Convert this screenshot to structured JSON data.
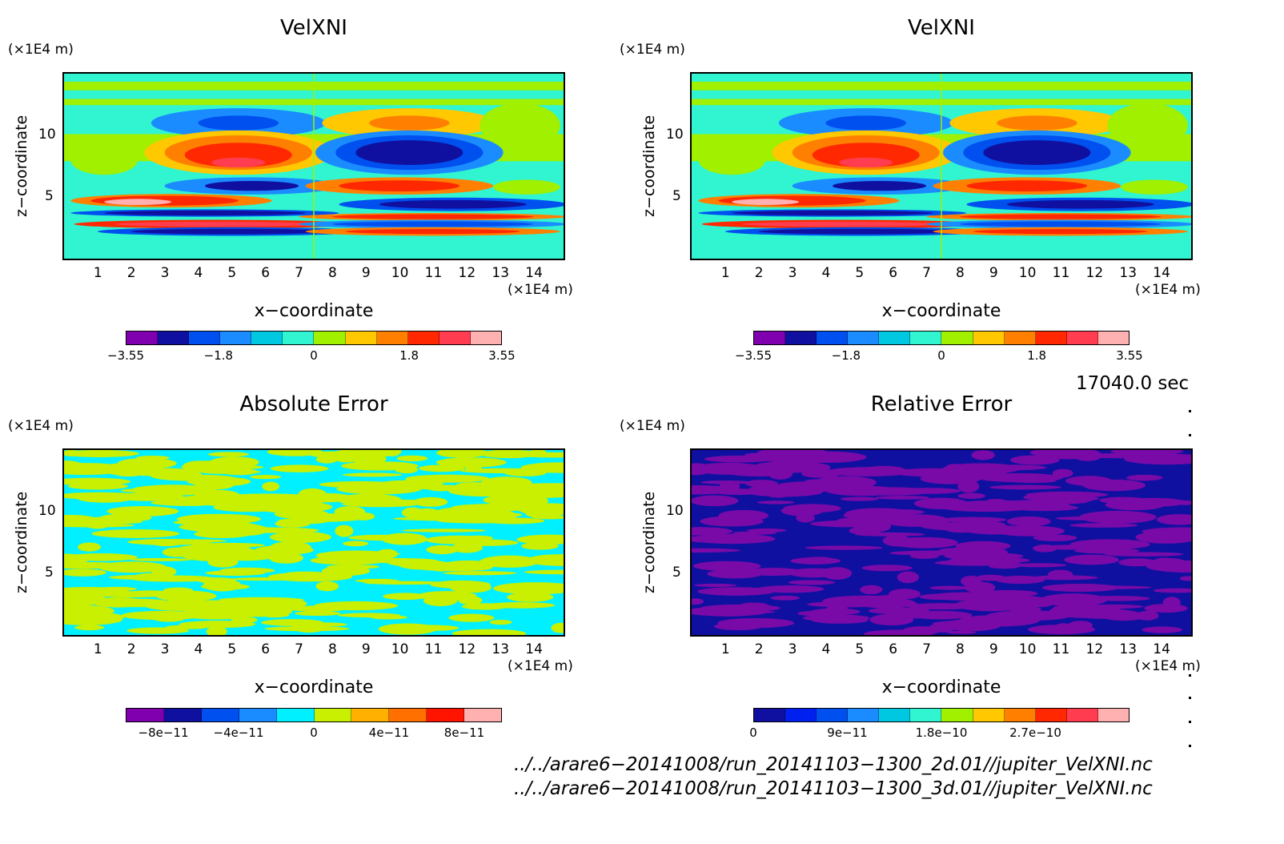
{
  "panels": [
    {
      "title": "VelXNI",
      "ylabel": "z−coordinate",
      "xlabel": "x−coordinate",
      "yunit": "(×1E4 m)",
      "xunit": "(×1E4 m)",
      "cbar_labels": [
        "−3.55",
        "−1.8",
        "0",
        "1.8",
        "3.55"
      ]
    },
    {
      "title": "VelXNI",
      "ylabel": "z−coordinate",
      "xlabel": "x−coordinate",
      "yunit": "(×1E4 m)",
      "xunit": "(×1E4 m)",
      "cbar_labels": [
        "−3.55",
        "−1.8",
        "0",
        "1.8",
        "3.55"
      ]
    },
    {
      "title": "Absolute Error",
      "ylabel": "z−coordinate",
      "xlabel": "x−coordinate",
      "yunit": "(×1E4 m)",
      "xunit": "(×1E4 m)",
      "cbar_labels": [
        "−8e−11",
        "−4e−11",
        "0",
        "4e−11",
        "8e−11"
      ]
    },
    {
      "title": "Relative Error",
      "ylabel": "z−coordinate",
      "xlabel": "x−coordinate",
      "yunit": "(×1E4 m)",
      "xunit": "(×1E4 m)",
      "cbar_labels": [
        "0",
        "9e−11",
        "1.8e−10",
        "2.7e−10"
      ]
    }
  ],
  "timestamp": "17040.0 sec",
  "files": [
    "../../arare6−20141008/run_20141103−1300_2d.01//jupiter_VelXNI.nc",
    "../../arare6−20141008/run_20141103−1300_3d.01//jupiter_VelXNI.nc"
  ],
  "chart_data": [
    {
      "type": "heatmap",
      "title": "VelXNI",
      "xlabel": "x−coordinate",
      "ylabel": "z−coordinate",
      "xticks": [
        1,
        2,
        3,
        4,
        5,
        6,
        7,
        8,
        9,
        10,
        11,
        12,
        13,
        14
      ],
      "yticks": [
        5,
        10
      ],
      "xlim": [
        0,
        14.9
      ],
      "ylim": [
        0,
        15
      ],
      "colorbar": {
        "min": -3.55,
        "max": 3.55,
        "ticks": [
          -3.55,
          -1.8,
          0,
          1.8,
          3.55
        ],
        "colors": [
          "#8000b0",
          "#1010a0",
          "#0050f0",
          "#1a8cff",
          "#00c8e0",
          "#30f5d0",
          "#a0f000",
          "#ffc800",
          "#ff8000",
          "#ff2800",
          "#ff3c50",
          "#ffb0b0"
        ]
      }
    },
    {
      "type": "heatmap",
      "title": "VelXNI",
      "xlabel": "x−coordinate",
      "ylabel": "z−coordinate",
      "xticks": [
        1,
        2,
        3,
        4,
        5,
        6,
        7,
        8,
        9,
        10,
        11,
        12,
        13,
        14
      ],
      "yticks": [
        5,
        10
      ],
      "xlim": [
        0,
        14.9
      ],
      "ylim": [
        0,
        15
      ],
      "colorbar": {
        "min": -3.55,
        "max": 3.55,
        "ticks": [
          -3.55,
          -1.8,
          0,
          1.8,
          3.55
        ],
        "colors": [
          "#8000b0",
          "#1010a0",
          "#0050f0",
          "#1a8cff",
          "#00c8e0",
          "#30f5d0",
          "#a0f000",
          "#ffc800",
          "#ff8000",
          "#ff2800",
          "#ff3c50",
          "#ffb0b0"
        ]
      }
    },
    {
      "type": "heatmap",
      "title": "Absolute Error",
      "xlabel": "x−coordinate",
      "ylabel": "z−coordinate",
      "xticks": [
        1,
        2,
        3,
        4,
        5,
        6,
        7,
        8,
        9,
        10,
        11,
        12,
        13,
        14
      ],
      "yticks": [
        5,
        10
      ],
      "xlim": [
        0,
        14.9
      ],
      "ylim": [
        0,
        15
      ],
      "colorbar": {
        "min": -1e-10,
        "max": 1e-10,
        "ticks": [
          -8e-11,
          -4e-11,
          0,
          4e-11,
          8e-11
        ],
        "colors": [
          "#8000b0",
          "#1010a0",
          "#0050f0",
          "#1a8cff",
          "#00f0ff",
          "#c8f000",
          "#ffb000",
          "#ff7000",
          "#ff1400",
          "#ffb0b0"
        ]
      }
    },
    {
      "type": "heatmap",
      "title": "Relative Error",
      "xlabel": "x−coordinate",
      "ylabel": "z−coordinate",
      "xticks": [
        1,
        2,
        3,
        4,
        5,
        6,
        7,
        8,
        9,
        10,
        11,
        12,
        13,
        14
      ],
      "yticks": [
        5,
        10
      ],
      "xlim": [
        0,
        14.9
      ],
      "ylim": [
        0,
        15
      ],
      "colorbar": {
        "min": 0,
        "max": 3.6e-10,
        "ticks": [
          0,
          9e-11,
          1.8e-10,
          2.7e-10
        ],
        "colors": [
          "#1010a0",
          "#0020f0",
          "#0050f0",
          "#1a8cff",
          "#00c8e0",
          "#30f5d0",
          "#a0f000",
          "#ffc800",
          "#ff8000",
          "#ff2800",
          "#ff3c50",
          "#ffb0b0"
        ]
      }
    }
  ]
}
